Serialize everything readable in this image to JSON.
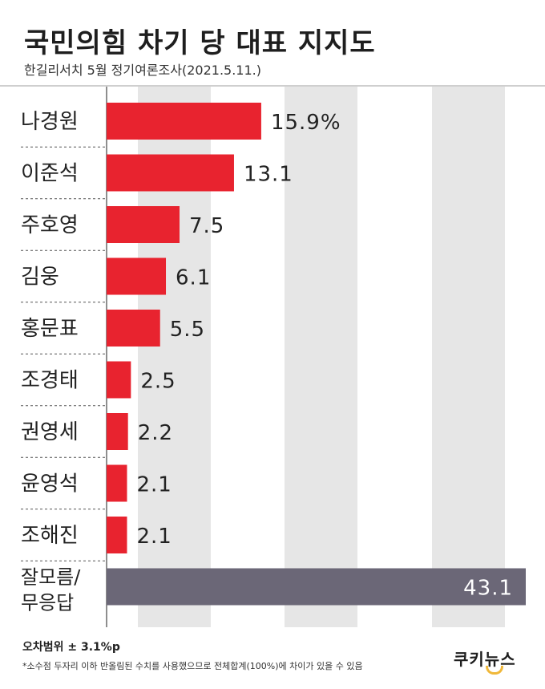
{
  "header": {
    "title": "국민의힘 차기 당 대표 지지도",
    "subtitle": "한길리서치 5월 정기여론조사(2021.5.11.)"
  },
  "chart_data": {
    "type": "bar",
    "orientation": "horizontal",
    "categories": [
      "나경원",
      "이준석",
      "주호영",
      "김웅",
      "홍문표",
      "조경태",
      "권영세",
      "윤영석",
      "조해진",
      "잘모름/무응답"
    ],
    "values": [
      15.9,
      13.1,
      7.5,
      6.1,
      5.5,
      2.5,
      2.2,
      2.1,
      2.1,
      43.1
    ],
    "value_labels": [
      "15.9%",
      "13.1",
      "7.5",
      "6.1",
      "5.5",
      "2.5",
      "2.2",
      "2.1",
      "2.1",
      "43.1"
    ],
    "unit": "%",
    "xlim": [
      0,
      43.1
    ],
    "bar_color": "#e8232f",
    "highlight_color": "#6b6777",
    "grid_band_color": "#e6e6e6"
  },
  "footer": {
    "note": "오차범위 ± 3.1%p",
    "footnote": "*소수점 두자리 이하 반올림된 수치를 사용했으므로 전체합계(100%)에 차이가 있을 수 있음",
    "logo_text": "쿠키뉴스",
    "logo_color": "#f0b83a"
  }
}
